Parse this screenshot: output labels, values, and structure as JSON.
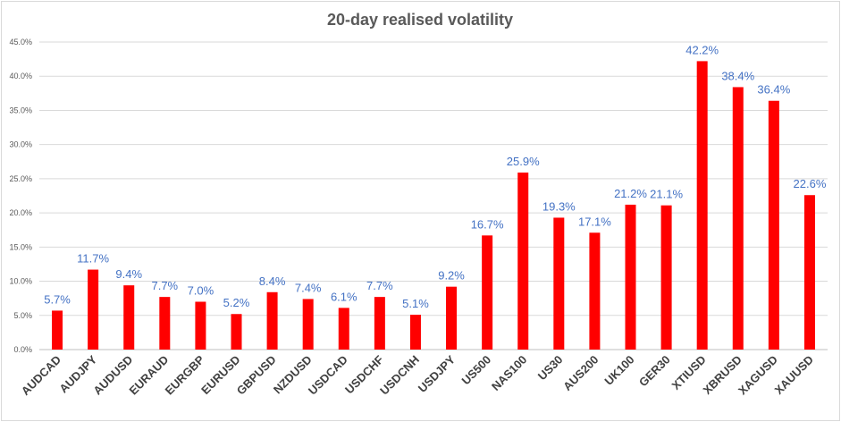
{
  "chart_data": {
    "type": "bar",
    "title": "20-day realised volatility",
    "xlabel": "",
    "ylabel": "",
    "ylim": [
      0,
      45
    ],
    "yticks": [
      "0.0%",
      "5.0%",
      "10.0%",
      "15.0%",
      "20.0%",
      "25.0%",
      "30.0%",
      "35.0%",
      "40.0%",
      "45.0%"
    ],
    "grid": true,
    "legend": "none",
    "bar_color": "#ff0000",
    "label_color": "#4472c4",
    "categories": [
      "AUDCAD",
      "AUDJPY",
      "AUDUSD",
      "EURAUD",
      "EURGBP",
      "EURUSD",
      "GBPUSD",
      "NZDUSD",
      "USDCAD",
      "USDCHF",
      "USDCNH",
      "USDJPY",
      "US500",
      "NAS100",
      "US30",
      "AUS200",
      "UK100",
      "GER30",
      "XTIUSD",
      "XBRUSD",
      "XAGUSD",
      "XAUUSD"
    ],
    "values": [
      5.7,
      11.7,
      9.4,
      7.7,
      7.0,
      5.2,
      8.4,
      7.4,
      6.1,
      7.7,
      5.1,
      9.2,
      16.7,
      25.9,
      19.3,
      17.1,
      21.2,
      21.1,
      42.2,
      38.4,
      36.4,
      22.6
    ],
    "data_labels": [
      "5.7%",
      "11.7%",
      "9.4%",
      "7.7%",
      "7.0%",
      "5.2%",
      "8.4%",
      "7.4%",
      "6.1%",
      "7.7%",
      "5.1%",
      "9.2%",
      "16.7%",
      "25.9%",
      "19.3%",
      "17.1%",
      "21.2%",
      "21.1%",
      "42.2%",
      "38.4%",
      "36.4%",
      "22.6%"
    ]
  }
}
